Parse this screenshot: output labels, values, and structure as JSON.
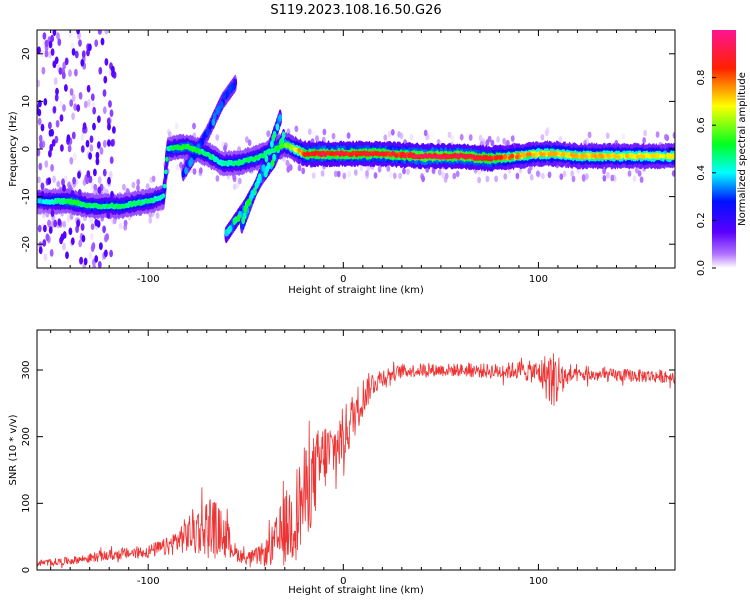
{
  "figure_title": "S119.2023.108.16.50.G26",
  "chart_data": [
    {
      "type": "heatmap",
      "title": "",
      "xlabel": "Height of straight line (km)",
      "ylabel": "Frequency (Hz)",
      "xlim": [
        -157,
        170
      ],
      "ylim": [
        -25,
        25
      ],
      "xticks": [
        -100,
        0,
        100
      ],
      "yticks": [
        -20,
        -10,
        0,
        10,
        20
      ],
      "colorbar": {
        "label": "Normalized spectral amplitude",
        "range": [
          0,
          1
        ],
        "ticks": [
          "0.0",
          "0.2",
          "0.4",
          "0.6",
          "0.8"
        ],
        "colormap": [
          "#ffffff",
          "#7a00ff",
          "#0000ff",
          "#00ffff",
          "#00ff00",
          "#ffff00",
          "#ff0000",
          "#ff1493"
        ]
      },
      "ridge": {
        "x": [
          -155,
          -140,
          -130,
          -115,
          -100,
          -92,
          -90,
          -80,
          -70,
          -62,
          -55,
          -45,
          -35,
          -30,
          -25,
          -20,
          -10,
          0,
          20,
          40,
          60,
          75,
          90,
          100,
          110,
          120,
          140,
          168
        ],
        "y": [
          -11,
          -11,
          -12,
          -12,
          -11,
          -10,
          0,
          0.5,
          -1,
          -3,
          -3,
          -2,
          0,
          1,
          0,
          -1,
          -1,
          -1,
          -1,
          -1.5,
          -1.5,
          -2,
          -1.5,
          -1,
          -1,
          -1.5,
          -1.5,
          -1.5
        ],
        "amp": [
          0.4,
          0.55,
          0.5,
          0.5,
          0.5,
          0.45,
          0.5,
          0.55,
          0.5,
          0.45,
          0.5,
          0.5,
          0.5,
          0.6,
          0.7,
          0.85,
          0.95,
          0.9,
          0.9,
          0.95,
          0.95,
          0.9,
          0.8,
          0.75,
          0.75,
          0.75,
          0.75,
          0.7
        ]
      },
      "branches": [
        {
          "x": [
            -82,
            -70,
            -62,
            -55
          ],
          "y": [
            -5,
            3,
            10,
            14
          ],
          "amp": 0.3
        },
        {
          "x": [
            -60,
            -50,
            -42,
            -35,
            -30
          ],
          "y": [
            -18,
            -12,
            -6,
            -2,
            3
          ],
          "amp": 0.45
        },
        {
          "x": [
            -52,
            -42,
            -32
          ],
          "y": [
            -16,
            -5,
            7
          ],
          "amp": 0.4
        }
      ]
    },
    {
      "type": "line",
      "title": "",
      "xlabel": "Height of straight line (km)",
      "ylabel": "SNR (10 * v/v)",
      "xlim": [
        -157,
        170
      ],
      "ylim": [
        0,
        360
      ],
      "xticks": [
        -100,
        0,
        100
      ],
      "yticks": [
        0,
        100,
        200,
        300
      ],
      "series_color": "#ee3333",
      "envelope": {
        "x": [
          -157,
          -140,
          -120,
          -100,
          -90,
          -82,
          -75,
          -68,
          -60,
          -55,
          -50,
          -45,
          -40,
          -35,
          -30,
          -25,
          -20,
          -15,
          -10,
          -5,
          0,
          5,
          10,
          15,
          20,
          30,
          40,
          60,
          80,
          90,
          100,
          105,
          110,
          115,
          120,
          140,
          170
        ],
        "mean": [
          10,
          14,
          22,
          28,
          35,
          50,
          60,
          70,
          50,
          25,
          18,
          20,
          25,
          40,
          60,
          80,
          110,
          140,
          170,
          180,
          200,
          230,
          260,
          280,
          290,
          298,
          300,
          300,
          298,
          300,
          296,
          290,
          285,
          290,
          292,
          292,
          290
        ],
        "noise": [
          5,
          6,
          8,
          10,
          14,
          25,
          40,
          45,
          30,
          12,
          10,
          12,
          20,
          35,
          55,
          70,
          75,
          65,
          55,
          45,
          45,
          38,
          30,
          20,
          14,
          10,
          10,
          10,
          12,
          14,
          18,
          40,
          45,
          12,
          10,
          10,
          10
        ]
      }
    }
  ]
}
